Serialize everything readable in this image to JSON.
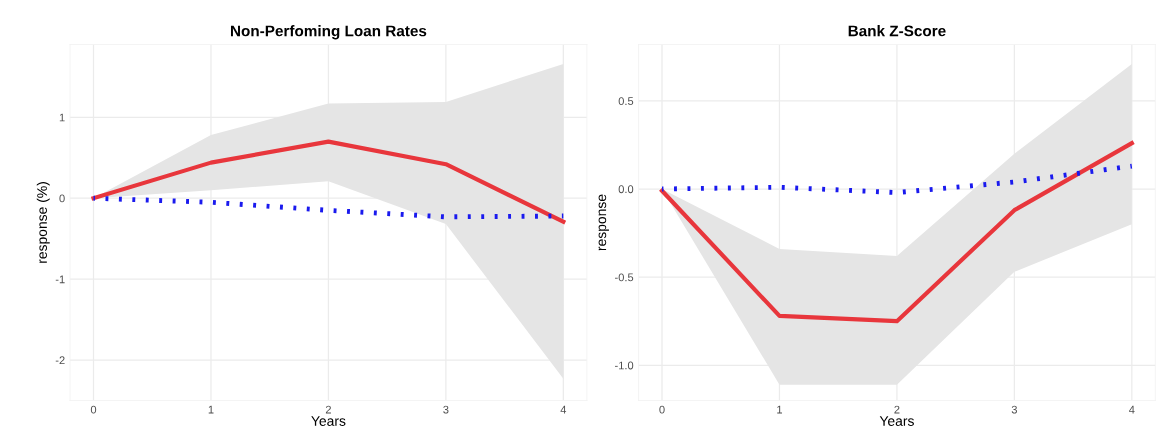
{
  "chart_data": [
    {
      "type": "line",
      "title": "Non-Perfoming Loan Rates",
      "xlabel": "Years",
      "ylabel": "response (%)",
      "x": [
        0,
        1,
        2,
        3,
        4
      ],
      "xlim": [
        -0.2,
        4.2
      ],
      "xticks": [
        0,
        1,
        2,
        3,
        4
      ],
      "ylim": [
        -2.5,
        1.9
      ],
      "yticks": [
        -2,
        -1,
        0,
        1
      ],
      "grid": true,
      "series": [
        {
          "color": "#e8363c",
          "line_style": "solid",
          "values": [
            0,
            0.44,
            0.7,
            0.42,
            -0.29
          ],
          "lower": [
            0,
            0.1,
            0.21,
            -0.32,
            -2.23
          ],
          "upper": [
            0,
            0.78,
            1.17,
            1.19,
            1.66
          ]
        },
        {
          "color": "#1a1aee",
          "line_style": "dotted",
          "values": [
            0,
            -0.05,
            -0.15,
            -0.23,
            -0.22
          ]
        }
      ]
    },
    {
      "type": "line",
      "title": "Bank Z-Score",
      "xlabel": "Years",
      "ylabel": "response",
      "x": [
        0,
        1,
        2,
        3,
        4
      ],
      "xlim": [
        -0.2,
        4.2
      ],
      "xticks": [
        0,
        1,
        2,
        3,
        4
      ],
      "ylim": [
        -1.2,
        0.82
      ],
      "yticks": [
        {
          "value": -1,
          "label": "-1.0"
        },
        {
          "value": -0.5,
          "label": "-0.5"
        },
        {
          "value": 0,
          "label": "0.0"
        },
        {
          "value": 0.5,
          "label": "0.5"
        }
      ],
      "grid": true,
      "series": [
        {
          "color": "#e8363c",
          "line_style": "solid",
          "values": [
            -0.01,
            -0.72,
            -0.75,
            -0.12,
            0.26
          ],
          "lower": [
            0,
            -1.11,
            -1.11,
            -0.47,
            -0.2
          ],
          "upper": [
            0,
            -0.34,
            -0.38,
            0.2,
            0.71
          ]
        },
        {
          "color": "#1a1aee",
          "line_style": "dotted",
          "values": [
            0,
            0.01,
            -0.02,
            0.04,
            0.13
          ]
        }
      ]
    }
  ]
}
